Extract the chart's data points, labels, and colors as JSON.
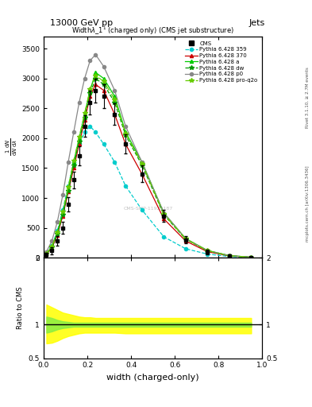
{
  "title_top": "13000 GeV pp",
  "title_right": "Jets",
  "xlabel": "width (charged-only)",
  "right_label_top": "Rivet 3.1.10, ≥ 2.7M events",
  "right_label_bottom": "mcplots.cern.ch [arXiv:1306.3436]",
  "watermark": "CMS-SMP-11920187",
  "x_bins": [
    0.0,
    0.025,
    0.05,
    0.075,
    0.1,
    0.125,
    0.15,
    0.175,
    0.2,
    0.225,
    0.25,
    0.3,
    0.35,
    0.4,
    0.5,
    0.6,
    0.7,
    0.8,
    0.9,
    1.0
  ],
  "cms_data": [
    50,
    120,
    280,
    500,
    900,
    1300,
    1700,
    2200,
    2600,
    2800,
    2700,
    2400,
    1900,
    1400,
    700,
    300,
    100,
    30,
    5
  ],
  "cms_errors": [
    30,
    60,
    80,
    100,
    120,
    140,
    160,
    180,
    200,
    200,
    200,
    180,
    160,
    140,
    100,
    60,
    40,
    20,
    10
  ],
  "series": [
    {
      "label": "Pythia 6.428 359",
      "color": "#00cccc",
      "linestyle": "--",
      "marker": "o",
      "markersize": 3,
      "values": [
        80,
        200,
        450,
        800,
        1200,
        1600,
        1900,
        2100,
        2200,
        2100,
        1900,
        1600,
        1200,
        800,
        350,
        150,
        60,
        20,
        5
      ]
    },
    {
      "label": "Pythia 6.428 370",
      "color": "#cc0000",
      "linestyle": "-",
      "marker": "^",
      "markersize": 3,
      "values": [
        60,
        160,
        380,
        700,
        1100,
        1500,
        1900,
        2300,
        2700,
        2900,
        2800,
        2400,
        1900,
        1400,
        650,
        280,
        100,
        30,
        8
      ]
    },
    {
      "label": "Pythia 6.428 a",
      "color": "#00cc00",
      "linestyle": "-",
      "marker": "^",
      "markersize": 3,
      "values": [
        70,
        180,
        420,
        750,
        1150,
        1600,
        2000,
        2400,
        2800,
        3100,
        3000,
        2700,
        2100,
        1600,
        750,
        320,
        120,
        35,
        8
      ]
    },
    {
      "label": "Pythia 6.428 dw",
      "color": "#009900",
      "linestyle": "--",
      "marker": "*",
      "markersize": 4,
      "values": [
        65,
        170,
        400,
        720,
        1120,
        1550,
        1950,
        2350,
        2750,
        3000,
        2900,
        2600,
        2050,
        1550,
        720,
        310,
        115,
        33,
        7
      ]
    },
    {
      "label": "Pythia 6.428 p0",
      "color": "#888888",
      "linestyle": "-",
      "marker": "o",
      "markersize": 3,
      "values": [
        100,
        280,
        600,
        1050,
        1600,
        2100,
        2600,
        3000,
        3300,
        3400,
        3200,
        2800,
        2200,
        1600,
        750,
        320,
        120,
        35,
        8
      ]
    },
    {
      "label": "Pythia 6.428 pro-q2o",
      "color": "#66cc00",
      "linestyle": "-.",
      "marker": "*",
      "markersize": 4,
      "values": [
        70,
        185,
        430,
        770,
        1180,
        1620,
        2020,
        2420,
        2820,
        3050,
        2950,
        2650,
        2080,
        1570,
        730,
        315,
        118,
        34,
        8
      ]
    }
  ],
  "ylim_main": [
    0,
    3700
  ],
  "ylim_ratio": [
    0.5,
    2.0
  ],
  "bg_color": "#ffffff",
  "ratio_yellow_low": [
    0.72,
    0.73,
    0.76,
    0.8,
    0.83,
    0.85,
    0.87,
    0.88,
    0.88,
    0.88,
    0.88,
    0.88,
    0.87,
    0.87,
    0.87,
    0.87,
    0.87,
    0.87,
    0.87
  ],
  "ratio_yellow_high": [
    1.3,
    1.26,
    1.22,
    1.18,
    1.16,
    1.14,
    1.12,
    1.11,
    1.11,
    1.1,
    1.1,
    1.1,
    1.1,
    1.1,
    1.1,
    1.1,
    1.1,
    1.1,
    1.1
  ],
  "ratio_green_low": [
    0.88,
    0.9,
    0.93,
    0.95,
    0.96,
    0.97,
    0.97,
    0.97,
    0.97,
    0.97,
    0.97,
    0.97,
    0.97,
    0.97,
    0.97,
    0.97,
    0.97,
    0.97,
    0.97
  ],
  "ratio_green_high": [
    1.12,
    1.1,
    1.07,
    1.05,
    1.04,
    1.03,
    1.03,
    1.03,
    1.03,
    1.03,
    1.03,
    1.03,
    1.03,
    1.03,
    1.03,
    1.03,
    1.03,
    1.03,
    1.03
  ]
}
